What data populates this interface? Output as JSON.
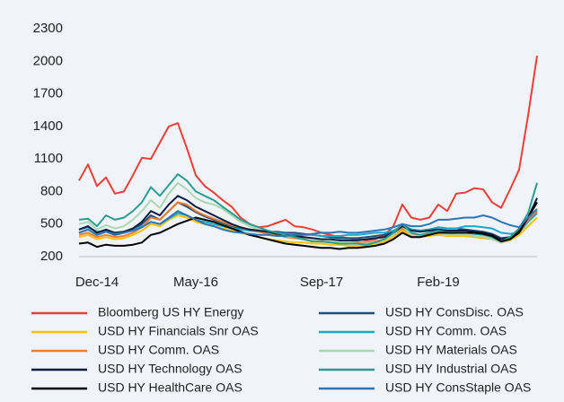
{
  "chart_data": {
    "type": "line",
    "categories": [
      null,
      null,
      "Dec-14",
      null,
      null,
      null,
      null,
      null,
      null,
      null,
      null,
      null,
      null,
      "May-16",
      null,
      null,
      null,
      null,
      null,
      null,
      null,
      null,
      null,
      null,
      null,
      null,
      null,
      "Sep-17",
      null,
      null,
      null,
      null,
      null,
      null,
      null,
      null,
      null,
      null,
      null,
      null,
      "Feb-19",
      null,
      null,
      null,
      null,
      null,
      null,
      null,
      null,
      null,
      null,
      null
    ],
    "ylim": [
      200,
      2300
    ],
    "yticks": [
      200,
      500,
      800,
      1100,
      1400,
      1700,
      2000,
      2300
    ],
    "grid": false,
    "series": [
      {
        "name": "Bloomberg US HY Energy",
        "color": "#e8413c",
        "values": [
          900,
          1050,
          850,
          930,
          780,
          800,
          950,
          1110,
          1100,
          1250,
          1400,
          1430,
          1200,
          950,
          850,
          790,
          720,
          660,
          560,
          500,
          470,
          480,
          510,
          540,
          480,
          470,
          450,
          420,
          400,
          380,
          370,
          360,
          350,
          360,
          400,
          480,
          680,
          560,
          540,
          560,
          680,
          620,
          780,
          790,
          830,
          820,
          700,
          650,
          820,
          1000,
          1500,
          2050
        ]
      },
      {
        "name": "USD HY ConsDisc. OAS",
        "color": "#1f4e79",
        "values": [
          420,
          450,
          400,
          430,
          400,
          420,
          450,
          500,
          580,
          540,
          620,
          700,
          660,
          610,
          570,
          540,
          510,
          480,
          460,
          450,
          440,
          430,
          430,
          420,
          420,
          410,
          400,
          390,
          380,
          370,
          370,
          370,
          380,
          390,
          400,
          430,
          490,
          450,
          440,
          450,
          470,
          460,
          460,
          450,
          440,
          430,
          410,
          370,
          380,
          420,
          540,
          620
        ]
      },
      {
        "name": "USD HY Financials Snr OAS",
        "color": "#ffc000",
        "values": [
          380,
          400,
          360,
          380,
          360,
          370,
          400,
          440,
          500,
          480,
          540,
          580,
          560,
          520,
          500,
          480,
          460,
          440,
          420,
          400,
          380,
          360,
          350,
          340,
          330,
          330,
          320,
          320,
          310,
          310,
          300,
          300,
          300,
          310,
          340,
          380,
          440,
          390,
          380,
          390,
          400,
          390,
          390,
          390,
          380,
          370,
          360,
          330,
          350,
          400,
          480,
          560
        ]
      },
      {
        "name": "USD HY Comm. OAS",
        "color": "#17a9c9",
        "values": [
          450,
          470,
          430,
          440,
          420,
          430,
          450,
          480,
          520,
          500,
          550,
          600,
          580,
          540,
          520,
          500,
          480,
          460,
          450,
          440,
          430,
          420,
          420,
          410,
          400,
          400,
          400,
          390,
          390,
          390,
          400,
          400,
          410,
          420,
          420,
          440,
          480,
          450,
          440,
          450,
          470,
          460,
          460,
          480,
          480,
          470,
          460,
          420,
          410,
          420,
          520,
          600
        ]
      },
      {
        "name": "USD HY Comm. OAS",
        "color": "#ed7d31",
        "values": [
          400,
          420,
          380,
          400,
          380,
          390,
          420,
          470,
          560,
          540,
          620,
          700,
          680,
          620,
          580,
          550,
          520,
          490,
          470,
          450,
          430,
          410,
          400,
          380,
          370,
          360,
          350,
          340,
          340,
          330,
          330,
          330,
          330,
          340,
          360,
          400,
          460,
          410,
          400,
          410,
          420,
          410,
          400,
          400,
          390,
          380,
          360,
          330,
          360,
          420,
          540,
          620
        ]
      },
      {
        "name": "USD HY Materials OAS",
        "color": "#a9d8b0",
        "values": [
          500,
          520,
          450,
          490,
          460,
          480,
          540,
          620,
          720,
          650,
          780,
          880,
          820,
          740,
          700,
          680,
          640,
          580,
          520,
          480,
          450,
          430,
          410,
          390,
          380,
          360,
          350,
          340,
          340,
          330,
          330,
          320,
          320,
          330,
          360,
          400,
          480,
          400,
          380,
          400,
          420,
          400,
          400,
          400,
          390,
          380,
          360,
          330,
          360,
          420,
          560,
          700
        ]
      },
      {
        "name": "USD HY Technology OAS",
        "color": "#0d1b3e",
        "values": [
          450,
          480,
          420,
          450,
          420,
          430,
          460,
          520,
          620,
          580,
          680,
          760,
          720,
          660,
          620,
          580,
          540,
          500,
          470,
          450,
          440,
          430,
          410,
          400,
          390,
          380,
          370,
          360,
          360,
          350,
          350,
          350,
          360,
          370,
          380,
          420,
          480,
          440,
          430,
          440,
          450,
          440,
          440,
          440,
          430,
          420,
          400,
          360,
          380,
          440,
          560,
          740
        ]
      },
      {
        "name": "USD HY Industrial OAS",
        "color": "#2a9d8f",
        "values": [
          540,
          550,
          480,
          580,
          540,
          560,
          620,
          700,
          840,
          760,
          860,
          960,
          900,
          800,
          760,
          720,
          660,
          600,
          540,
          500,
          470,
          440,
          420,
          400,
          380,
          360,
          340,
          340,
          330,
          320,
          320,
          320,
          310,
          330,
          360,
          420,
          500,
          420,
          400,
          420,
          440,
          420,
          420,
          420,
          410,
          400,
          380,
          340,
          380,
          460,
          600,
          880
        ]
      },
      {
        "name": "USD HY HealthCare OAS",
        "color": "#000000",
        "values": [
          320,
          330,
          290,
          310,
          300,
          300,
          310,
          330,
          400,
          420,
          460,
          500,
          530,
          560,
          540,
          520,
          490,
          460,
          430,
          400,
          380,
          360,
          340,
          320,
          310,
          300,
          290,
          280,
          280,
          270,
          280,
          280,
          290,
          300,
          320,
          360,
          420,
          380,
          380,
          400,
          420,
          420,
          420,
          420,
          420,
          410,
          390,
          340,
          360,
          420,
          560,
          700
        ]
      },
      {
        "name": "USD HY ConsStaple OAS",
        "color": "#2e75b6",
        "values": [
          420,
          450,
          400,
          430,
          410,
          420,
          440,
          470,
          520,
          500,
          560,
          620,
          580,
          540,
          500,
          480,
          450,
          430,
          420,
          410,
          400,
          400,
          390,
          390,
          400,
          400,
          410,
          420,
          420,
          430,
          420,
          420,
          430,
          440,
          450,
          470,
          500,
          480,
          480,
          500,
          540,
          540,
          550,
          560,
          560,
          580,
          560,
          520,
          490,
          470,
          560,
          640
        ]
      }
    ]
  }
}
